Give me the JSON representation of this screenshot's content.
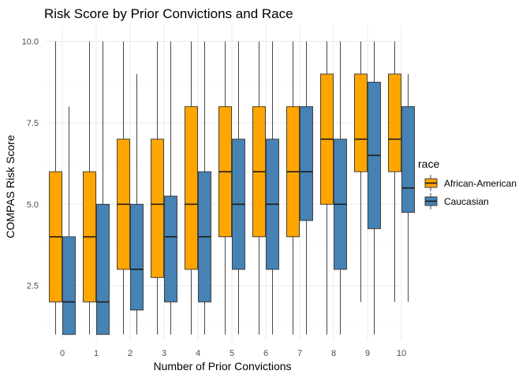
{
  "chart_data": {
    "type": "boxplot",
    "title": "Risk Score by Prior Convictions and Race",
    "xlabel": "Number of Prior Convictions",
    "ylabel": "COMPAS Risk Score",
    "categories": [
      "0",
      "1",
      "2",
      "3",
      "4",
      "5",
      "6",
      "7",
      "8",
      "9",
      "10"
    ],
    "yticks": [
      "2.5",
      "5.0",
      "7.5",
      "10.0"
    ],
    "ylim": [
      0.8,
      10.5
    ],
    "grid": true,
    "legend": {
      "title": "race",
      "position": "right"
    },
    "series": [
      {
        "name": "African-American",
        "color": "#FFA500",
        "boxes": [
          {
            "min": 1,
            "q1": 2,
            "median": 4,
            "q3": 6,
            "max": 10
          },
          {
            "min": 1,
            "q1": 2,
            "median": 4,
            "q3": 6,
            "max": 10
          },
          {
            "min": 1,
            "q1": 3,
            "median": 5,
            "q3": 7,
            "max": 10
          },
          {
            "min": 1,
            "q1": 2.75,
            "median": 5,
            "q3": 7,
            "max": 10
          },
          {
            "min": 1,
            "q1": 3,
            "median": 5,
            "q3": 8,
            "max": 10
          },
          {
            "min": 1,
            "q1": 4,
            "median": 6,
            "q3": 8,
            "max": 10
          },
          {
            "min": 1,
            "q1": 4,
            "median": 6,
            "q3": 8,
            "max": 10
          },
          {
            "min": 1,
            "q1": 4,
            "median": 6,
            "q3": 8,
            "max": 10
          },
          {
            "min": 1,
            "q1": 5,
            "median": 7,
            "q3": 9,
            "max": 10
          },
          {
            "min": 2,
            "q1": 6,
            "median": 7,
            "q3": 9,
            "max": 10
          },
          {
            "min": 2,
            "q1": 6,
            "median": 7,
            "q3": 9,
            "max": 10
          }
        ]
      },
      {
        "name": "Caucasian",
        "color": "#4682B4",
        "boxes": [
          {
            "min": 1,
            "q1": 1,
            "median": 2,
            "q3": 4,
            "max": 8
          },
          {
            "min": 1,
            "q1": 1,
            "median": 2,
            "q3": 5,
            "max": 10
          },
          {
            "min": 1,
            "q1": 1.75,
            "median": 3,
            "q3": 5,
            "max": 9
          },
          {
            "min": 1,
            "q1": 2,
            "median": 4,
            "q3": 5.25,
            "max": 10
          },
          {
            "min": 1,
            "q1": 2,
            "median": 4,
            "q3": 6,
            "max": 10
          },
          {
            "min": 1,
            "q1": 3,
            "median": 5,
            "q3": 7,
            "max": 10
          },
          {
            "min": 1,
            "q1": 3,
            "median": 5,
            "q3": 7,
            "max": 10
          },
          {
            "min": 1,
            "q1": 4.5,
            "median": 6,
            "q3": 8,
            "max": 10
          },
          {
            "min": 1,
            "q1": 3,
            "median": 5,
            "q3": 7,
            "max": 10
          },
          {
            "min": 1,
            "q1": 4.25,
            "median": 6.5,
            "q3": 8.75,
            "max": 10
          },
          {
            "min": 2,
            "q1": 4.75,
            "median": 5.5,
            "q3": 8,
            "max": 9
          }
        ]
      }
    ]
  }
}
